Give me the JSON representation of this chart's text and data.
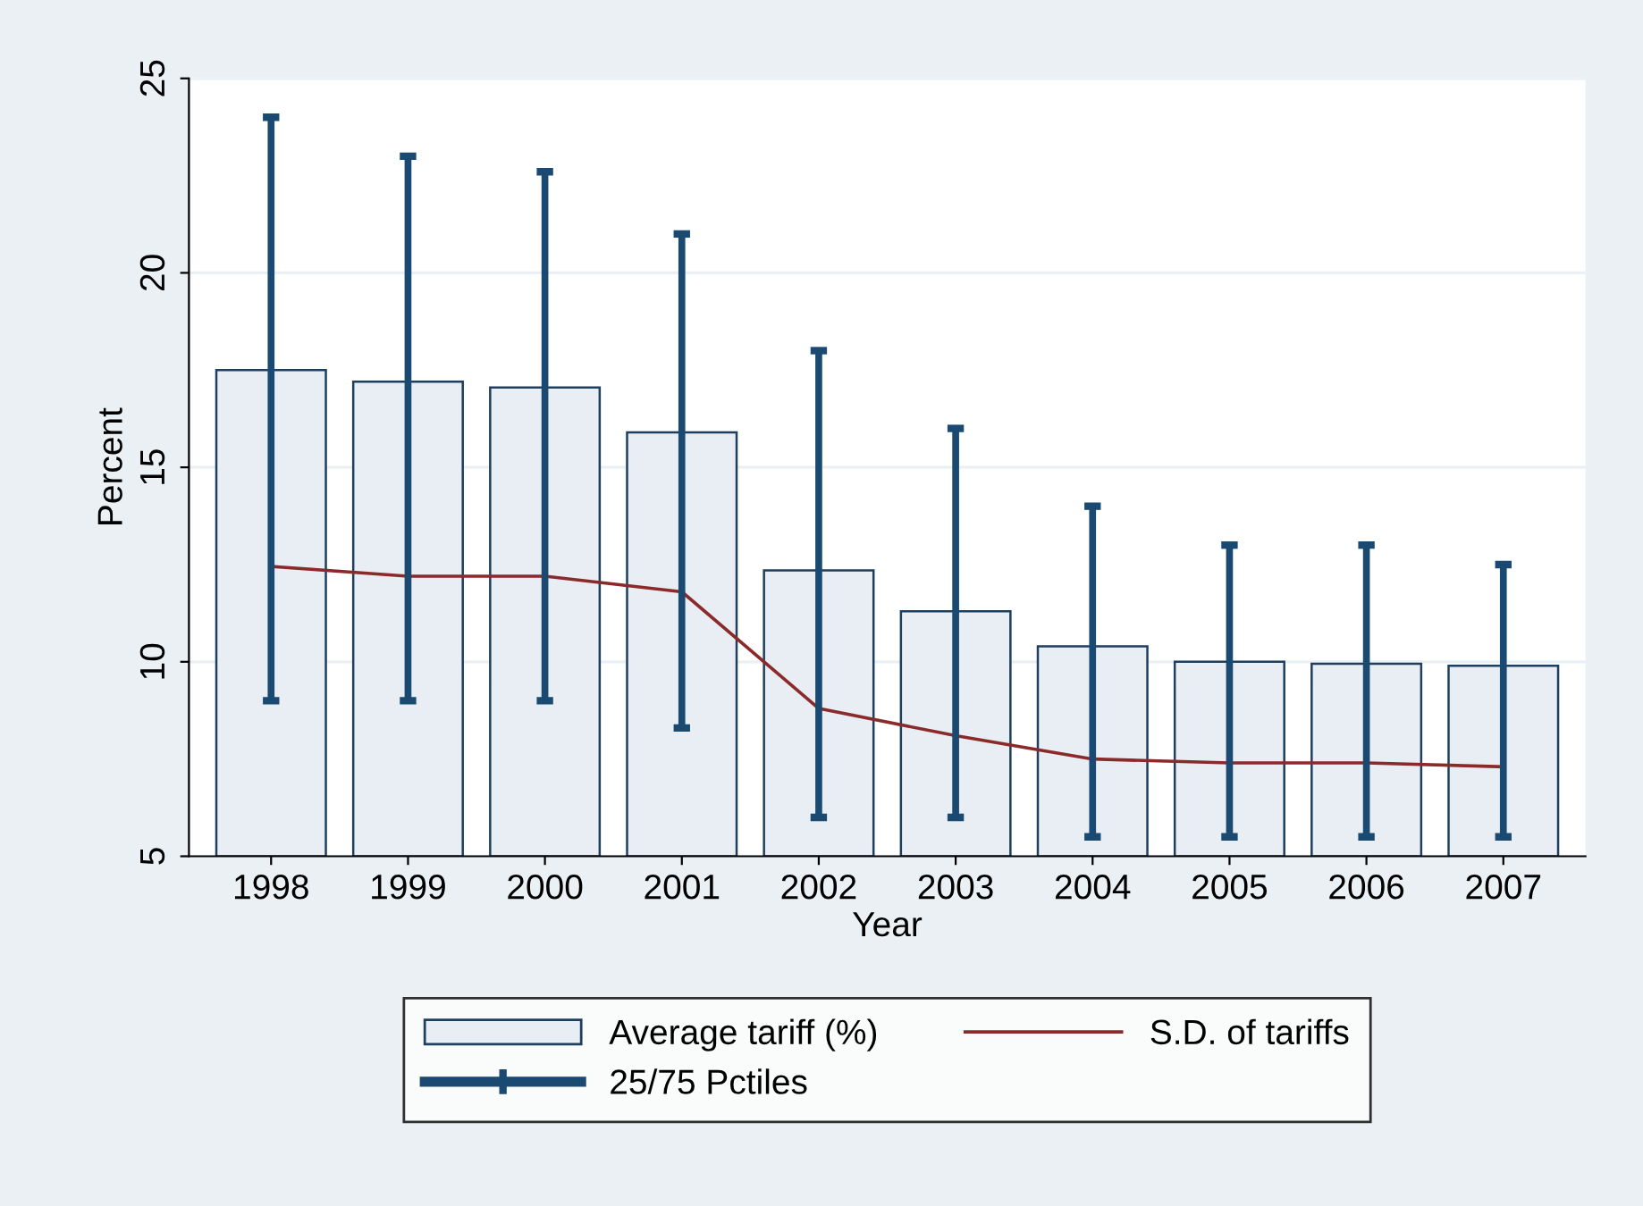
{
  "chart_data": {
    "type": "bar",
    "xlabel": "Year",
    "ylabel": "Percent",
    "categories": [
      "1998",
      "1999",
      "2000",
      "2001",
      "2002",
      "2003",
      "2004",
      "2005",
      "2006",
      "2007"
    ],
    "series": [
      {
        "name": "Average tariff (%)",
        "color": "#e8eef4",
        "values": [
          17.5,
          17.2,
          17.05,
          15.9,
          12.35,
          11.3,
          10.4,
          10.0,
          9.95,
          9.9
        ]
      },
      {
        "name": "S.D. of tariffs",
        "type": "line",
        "color": "#8b2a2a",
        "values": [
          12.45,
          12.2,
          12.2,
          11.8,
          8.8,
          8.1,
          7.5,
          7.4,
          7.4,
          7.3
        ]
      },
      {
        "name": "25/75 Pctiles",
        "type": "bar",
        "color": "#1a4a72",
        "base": [
          9,
          9,
          9,
          8.3,
          6,
          6,
          5.5,
          5.5,
          5.5,
          5.5
        ],
        "values": [
          15,
          14,
          13.6,
          12.7,
          12,
          10,
          8.5,
          7.5,
          7.5,
          7
        ]
      }
    ],
    "ylim": [
      5,
      25
    ],
    "yticks": [
      5,
      10,
      15,
      20,
      25
    ],
    "grid": "y",
    "legend": "bottom"
  }
}
